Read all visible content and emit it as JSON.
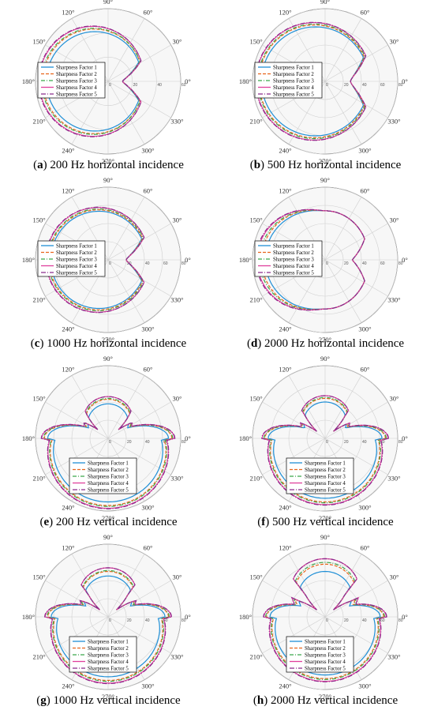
{
  "legend_labels": [
    "Sharpness Factor 1",
    "Sharpness Factor 2",
    "Sharpness Factor 3",
    "Sharpness Factor 4",
    "Sharpness Factor 5"
  ],
  "series_colors": [
    "#1f8fd6",
    "#e8641b",
    "#3aa64a",
    "#e0409c",
    "#8b2a8c"
  ],
  "series_dash": [
    "",
    "4,2",
    "5,2,1,2",
    "",
    "6,2,1,2"
  ],
  "angle_labels": [
    "0°",
    "30°",
    "60°",
    "90°",
    "120°",
    "150°",
    "180°",
    "210°",
    "240°",
    "270°",
    "300°",
    "330°"
  ],
  "chart_data": [
    {
      "type": "polar",
      "label": "a",
      "title": "200 Hz horizontal incidence",
      "orientation": "horizontal",
      "rmax": 60,
      "radial_ticks": [
        {
          "value": 0,
          "label": "0"
        },
        {
          "value": 20,
          "label": "20"
        },
        {
          "value": 40,
          "label": "40"
        },
        {
          "value": 60,
          "label": "60"
        }
      ],
      "series": [
        {
          "name": "Sharpness Factor 1",
          "front": 28,
          "back": 51,
          "notch": 12
        },
        {
          "name": "Sharpness Factor 2",
          "front": 29,
          "back": 54,
          "notch": 12
        },
        {
          "name": "Sharpness Factor 3",
          "front": 29,
          "back": 55,
          "notch": 12
        },
        {
          "name": "Sharpness Factor 4",
          "front": 30,
          "back": 57,
          "notch": 12
        },
        {
          "name": "Sharpness Factor 5",
          "front": 30,
          "back": 57.5,
          "notch": 12
        }
      ]
    },
    {
      "type": "polar",
      "label": "b",
      "title": "500 Hz horizontal incidence",
      "orientation": "horizontal",
      "rmax": 80,
      "radial_ticks": [
        {
          "value": 0,
          "label": "0"
        },
        {
          "value": 20,
          "label": "20"
        },
        {
          "value": 40,
          "label": "40"
        },
        {
          "value": 60,
          "label": "60"
        },
        {
          "value": 80,
          "label": "80"
        }
      ],
      "series": [
        {
          "name": "Sharpness Factor 1",
          "front": 48,
          "back": 70,
          "notch": 28
        },
        {
          "name": "Sharpness Factor 2",
          "front": 49,
          "back": 73,
          "notch": 28
        },
        {
          "name": "Sharpness Factor 3",
          "front": 50,
          "back": 74,
          "notch": 28
        },
        {
          "name": "Sharpness Factor 4",
          "front": 51,
          "back": 76,
          "notch": 28
        },
        {
          "name": "Sharpness Factor 5",
          "front": 51,
          "back": 76.5,
          "notch": 28
        }
      ]
    },
    {
      "type": "polar",
      "label": "c",
      "title": "1000 Hz horizontal incidence",
      "orientation": "horizontal",
      "rmax": 80,
      "radial_ticks": [
        {
          "value": 0,
          "label": "0"
        },
        {
          "value": 20,
          "label": "20"
        },
        {
          "value": 40,
          "label": "40"
        },
        {
          "value": 60,
          "label": "60"
        },
        {
          "value": 80,
          "label": "80"
        }
      ],
      "series": [
        {
          "name": "Sharpness Factor 1",
          "front": 42,
          "back": 63,
          "notch": 20
        },
        {
          "name": "Sharpness Factor 2",
          "front": 43,
          "back": 65,
          "notch": 20
        },
        {
          "name": "Sharpness Factor 3",
          "front": 44,
          "back": 66,
          "notch": 20
        },
        {
          "name": "Sharpness Factor 4",
          "front": 45,
          "back": 68,
          "notch": 20
        },
        {
          "name": "Sharpness Factor 5",
          "front": 45,
          "back": 68.5,
          "notch": 20
        }
      ]
    },
    {
      "type": "polar",
      "label": "d",
      "title": "2000 Hz horizontal incidence",
      "orientation": "horizontal-2000",
      "rmax": 80,
      "radial_ticks": [
        {
          "value": 0,
          "label": "0"
        },
        {
          "value": 20,
          "label": "20"
        },
        {
          "value": 40,
          "label": "40"
        },
        {
          "value": 60,
          "label": "60"
        },
        {
          "value": 80,
          "label": "80"
        }
      ],
      "series": [
        {
          "name": "Sharpness Factor 1",
          "front": 44,
          "back": 62,
          "notch": 30
        },
        {
          "name": "Sharpness Factor 2",
          "front": 44,
          "back": 66,
          "notch": 30
        },
        {
          "name": "Sharpness Factor 3",
          "front": 44,
          "back": 68,
          "notch": 30
        },
        {
          "name": "Sharpness Factor 4",
          "front": 44,
          "back": 71,
          "notch": 30
        },
        {
          "name": "Sharpness Factor 5",
          "front": 44,
          "back": 72,
          "notch": 30
        }
      ]
    },
    {
      "type": "polar",
      "label": "e",
      "title": "200 Hz vertical incidence",
      "orientation": "vertical",
      "rmax": 80,
      "radial_ticks": [
        {
          "value": 0,
          "label": "0"
        },
        {
          "value": 20,
          "label": "20"
        },
        {
          "value": 40,
          "label": "40"
        },
        {
          "value": 60,
          "label": "60"
        },
        {
          "value": 80,
          "label": "80"
        }
      ],
      "series": [
        {
          "name": "Sharpness Factor 1",
          "front": 38,
          "back": 70,
          "notch": 15
        },
        {
          "name": "Sharpness Factor 2",
          "front": 43,
          "back": 74,
          "notch": 15
        },
        {
          "name": "Sharpness Factor 3",
          "front": 44,
          "back": 75,
          "notch": 15
        },
        {
          "name": "Sharpness Factor 4",
          "front": 46,
          "back": 77,
          "notch": 15
        },
        {
          "name": "Sharpness Factor 5",
          "front": 46,
          "back": 77.5,
          "notch": 15
        }
      ]
    },
    {
      "type": "polar",
      "label": "f",
      "title": "500 Hz vertical incidence",
      "orientation": "vertical",
      "rmax": 80,
      "radial_ticks": [
        {
          "value": 0,
          "label": "0"
        },
        {
          "value": 20,
          "label": "20"
        },
        {
          "value": 40,
          "label": "40"
        },
        {
          "value": 60,
          "label": "60"
        },
        {
          "value": 80,
          "label": "80"
        }
      ],
      "series": [
        {
          "name": "Sharpness Factor 1",
          "front": 40,
          "back": 66,
          "notch": 12
        },
        {
          "name": "Sharpness Factor 2",
          "front": 44,
          "back": 70,
          "notch": 12
        },
        {
          "name": "Sharpness Factor 3",
          "front": 45,
          "back": 71,
          "notch": 12
        },
        {
          "name": "Sharpness Factor 4",
          "front": 47,
          "back": 73,
          "notch": 12
        },
        {
          "name": "Sharpness Factor 5",
          "front": 47,
          "back": 73.5,
          "notch": 12
        }
      ]
    },
    {
      "type": "polar",
      "label": "g",
      "title": "1000 Hz vertical incidence",
      "orientation": "vertical",
      "rmax": 80,
      "radial_ticks": [
        {
          "value": 0,
          "label": "0"
        },
        {
          "value": 20,
          "label": "20"
        },
        {
          "value": 40,
          "label": "40"
        },
        {
          "value": 60,
          "label": "60"
        },
        {
          "value": 80,
          "label": "80"
        }
      ],
      "series": [
        {
          "name": "Sharpness Factor 1",
          "front": 45,
          "back": 66,
          "notch": 12
        },
        {
          "name": "Sharpness Factor 2",
          "front": 50,
          "back": 70,
          "notch": 12
        },
        {
          "name": "Sharpness Factor 3",
          "front": 51,
          "back": 71,
          "notch": 12
        },
        {
          "name": "Sharpness Factor 4",
          "front": 54,
          "back": 73,
          "notch": 12
        },
        {
          "name": "Sharpness Factor 5",
          "front": 54,
          "back": 73.5,
          "notch": 12
        }
      ]
    },
    {
      "type": "polar",
      "label": "h",
      "title": "2000 Hz vertical incidence",
      "orientation": "vertical",
      "rmax": 80,
      "radial_ticks": [
        {
          "value": 0,
          "label": "0"
        },
        {
          "value": 20,
          "label": "20"
        },
        {
          "value": 40,
          "label": "40"
        },
        {
          "value": 60,
          "label": "60"
        },
        {
          "value": 80,
          "label": "80"
        }
      ],
      "series": [
        {
          "name": "Sharpness Factor 1",
          "front": 50,
          "back": 64,
          "notch": 12
        },
        {
          "name": "Sharpness Factor 2",
          "front": 58,
          "back": 68,
          "notch": 12
        },
        {
          "name": "Sharpness Factor 3",
          "front": 60,
          "back": 69,
          "notch": 12
        },
        {
          "name": "Sharpness Factor 4",
          "front": 64,
          "back": 71,
          "notch": 12
        },
        {
          "name": "Sharpness Factor 5",
          "front": 64,
          "back": 71.5,
          "notch": 12
        }
      ]
    }
  ]
}
